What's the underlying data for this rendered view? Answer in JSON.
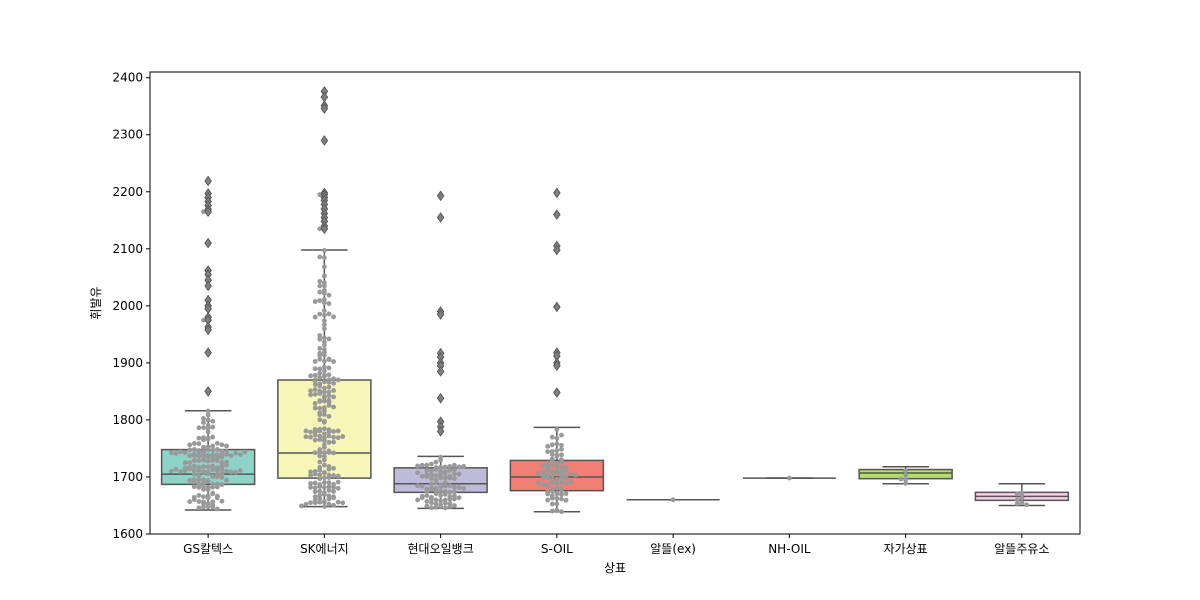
{
  "chart_data": {
    "type": "boxplot",
    "title": "",
    "xlabel": "상표",
    "ylabel": "휘발유",
    "ylim": [
      1600,
      2410
    ],
    "yticks": [
      1600,
      1700,
      1800,
      1900,
      2000,
      2100,
      2200,
      2300,
      2400
    ],
    "grid": false,
    "swarm_color": "#999999",
    "outlier_color": "#7f7f7f",
    "line_color": "#555555",
    "categories": [
      "GS칼텍스",
      "SK에너지",
      "현대오일뱅크",
      "S-OIL",
      "알뜰(ex)",
      "NH-OIL",
      "자가상표",
      "알뜰주유소"
    ],
    "colors": [
      "#8dd3c7",
      "#f7f6b9",
      "#bebada",
      "#f08073",
      "#80b1d3",
      "#fdb462",
      "#b3de69",
      "#fccde5"
    ],
    "boxes": [
      {
        "q1": 1687,
        "median": 1705,
        "q3": 1748,
        "whisker_low": 1642,
        "whisker_high": 1816,
        "outliers": [
          2219,
          2197,
          2190,
          2183,
          2176,
          2169,
          2165,
          2110,
          2062,
          2055,
          2045,
          2035,
          2010,
          2000,
          1995,
          1980,
          1975,
          1963,
          1958,
          1918,
          1850
        ],
        "swarm_count": 150
      },
      {
        "q1": 1698,
        "median": 1742,
        "q3": 1870,
        "whisker_low": 1648,
        "whisker_high": 2098,
        "outliers": [
          2376,
          2366,
          2351,
          2346,
          2290,
          2198,
          2195,
          2190,
          2185,
          2178,
          2170,
          2162,
          2155,
          2148,
          2140,
          2135
        ],
        "swarm_count": 200
      },
      {
        "q1": 1673,
        "median": 1688,
        "q3": 1716,
        "whisker_low": 1645,
        "whisker_high": 1736,
        "outliers": [
          2193,
          2155,
          1990,
          1985,
          1917,
          1910,
          1900,
          1895,
          1885,
          1838,
          1797,
          1788,
          1780
        ],
        "swarm_count": 90
      },
      {
        "q1": 1676,
        "median": 1700,
        "q3": 1729,
        "whisker_low": 1639,
        "whisker_high": 1787,
        "outliers": [
          2198,
          2160,
          2105,
          2098,
          1998,
          1918,
          1912,
          1900,
          1895,
          1848
        ],
        "swarm_count": 80
      },
      {
        "q1": 1660,
        "median": 1660,
        "q3": 1660,
        "whisker_low": 1660,
        "whisker_high": 1660,
        "outliers": [],
        "swarm_count": 1
      },
      {
        "q1": 1698,
        "median": 1698,
        "q3": 1698,
        "whisker_low": 1698,
        "whisker_high": 1698,
        "outliers": [],
        "swarm_count": 1
      },
      {
        "q1": 1697,
        "median": 1707,
        "q3": 1713,
        "whisker_low": 1688,
        "whisker_high": 1718,
        "outliers": [],
        "swarm_count": 5
      },
      {
        "q1": 1659,
        "median": 1666,
        "q3": 1673,
        "whisker_low": 1650,
        "whisker_high": 1688,
        "outliers": [],
        "swarm_count": 8
      }
    ]
  }
}
